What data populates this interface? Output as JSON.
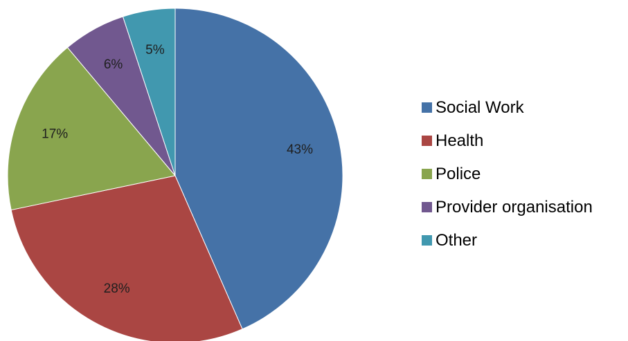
{
  "chart_data": {
    "type": "pie",
    "title": "",
    "categories": [
      "Social Work",
      "Health",
      "Police",
      "Provider organisation",
      "Other"
    ],
    "values": [
      43,
      28,
      17,
      6,
      5
    ],
    "labels": [
      "43%",
      "28%",
      "17%",
      "6%",
      "5%"
    ],
    "colors": [
      "#4572A7",
      "#AA4643",
      "#89A54E",
      "#71588F",
      "#4198AF"
    ],
    "start": "12 o'clock",
    "direction": "clockwise",
    "legend_position": "right"
  }
}
